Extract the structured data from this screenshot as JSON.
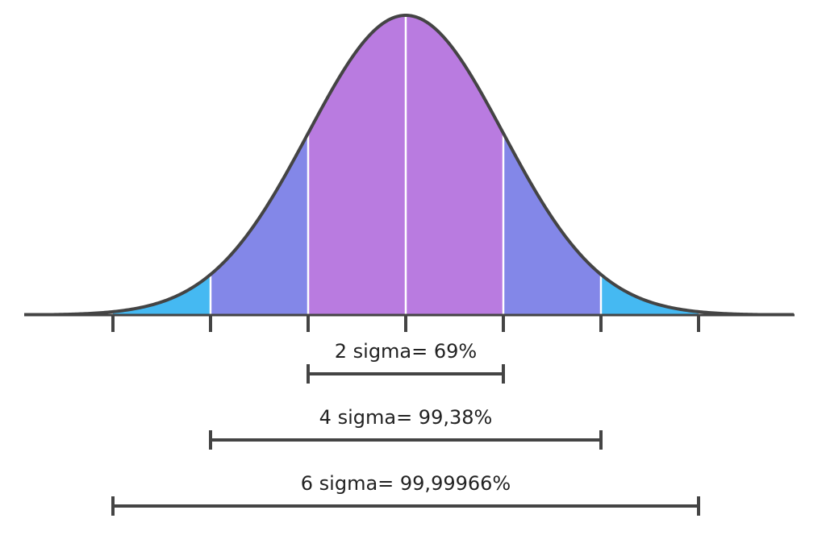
{
  "colors": {
    "center": "#b97be0",
    "middle": "#8387e8",
    "outer": "#45b9f2",
    "stroke": "#444444",
    "separator": "#ffffff",
    "background": "#ffffff"
  },
  "bands": [
    {
      "from": -3,
      "to": -2,
      "color": "outer"
    },
    {
      "from": -2,
      "to": -1,
      "color": "middle"
    },
    {
      "from": -1,
      "to": 1,
      "color": "center"
    },
    {
      "from": 1,
      "to": 2,
      "color": "middle"
    },
    {
      "from": 2,
      "to": 3,
      "color": "outer"
    }
  ],
  "ticks": [
    -3,
    -2,
    -1,
    0,
    1,
    2,
    3
  ],
  "ranges": [
    {
      "label": "2 sigma= 69%",
      "from": -1,
      "to": 1
    },
    {
      "label": "4 sigma= 99,38%",
      "from": -2,
      "to": 2
    },
    {
      "label": "6 sigma= 99,99966%",
      "from": -3,
      "to": 3
    }
  ]
}
